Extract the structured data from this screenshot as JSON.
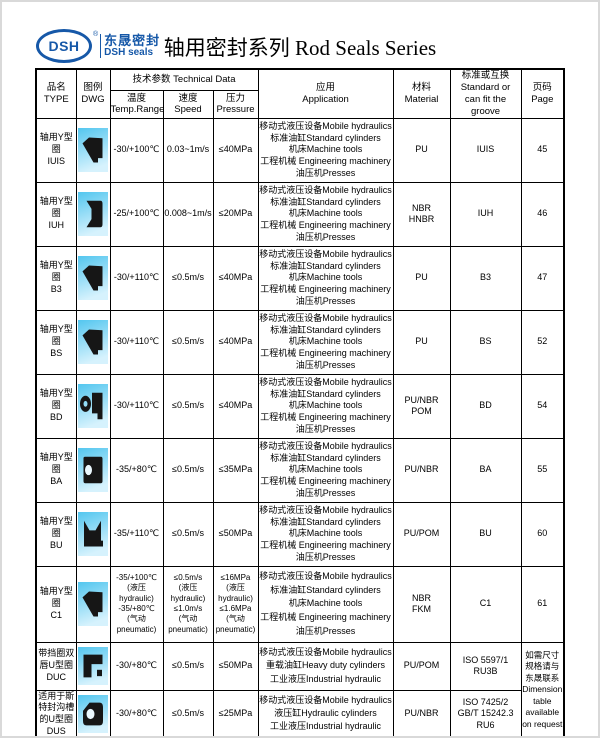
{
  "logo": {
    "mark": "DSH",
    "reg": "®",
    "cn": "东晟密封",
    "en": "DSH seals"
  },
  "title": "轴用密封系列 Rod Seals Series",
  "colors": {
    "logo_blue": "#1658a8",
    "dwg_cyan_top": "#53c6ef",
    "dwg_cyan_bottom": "#d6f2fd",
    "seal_black": "#161616"
  },
  "table": {
    "header": {
      "type": [
        "品名",
        "TYPE"
      ],
      "dwg": [
        "图例",
        "DWG"
      ],
      "tech": "技术参数 Technical Data",
      "temp": [
        "温度",
        "Temp.Range"
      ],
      "speed": [
        "速度",
        "Speed"
      ],
      "pressure": [
        "压力",
        "Pressure"
      ],
      "application": [
        "应用",
        "Application"
      ],
      "material": [
        "材料",
        "Material"
      ],
      "standard": [
        "标准或互换",
        "Standard or",
        "can fit the groove"
      ],
      "page": [
        "页码",
        "Page"
      ]
    },
    "rows": [
      {
        "type": "轴用Y型圈",
        "code": "IUIS",
        "shape": "y-cup",
        "temp": [
          "-30/+100℃"
        ],
        "speed": [
          "0.03~1m/s"
        ],
        "pressure": [
          "≤40MPa"
        ],
        "application": [
          "移动式液压设备Mobile hydraulics",
          "标准油缸Standard cylinders",
          "机床Machine tools",
          "工程机械 Engineering machinery",
          "油压机Presses"
        ],
        "material": [
          "PU"
        ],
        "standard": [
          "IUIS"
        ],
        "page": "45"
      },
      {
        "type": "轴用Y型圈",
        "code": "IUH",
        "shape": "u-lips-left",
        "temp": [
          "-25/+100℃"
        ],
        "speed": [
          "0.008~1m/s"
        ],
        "pressure": [
          "≤20MPa"
        ],
        "application": [
          "移动式液压设备Mobile hydraulics",
          "标准油缸Standard cylinders",
          "机床Machine tools",
          "工程机械 Engineering machinery",
          "油压机Presses"
        ],
        "material": [
          "NBR",
          "HNBR"
        ],
        "standard": [
          "IUH"
        ],
        "page": "46"
      },
      {
        "type": "轴用Y型圈",
        "code": "B3",
        "shape": "y-cup",
        "temp": [
          "-30/+110℃"
        ],
        "speed": [
          "≤0.5m/s"
        ],
        "pressure": [
          "≤40MPa"
        ],
        "application": [
          "移动式液压设备Mobile hydraulics",
          "标准油缸Standard cylinders",
          "机床Machine tools",
          "工程机械 Engineering machinery",
          "油压机Presses"
        ],
        "material": [
          "PU"
        ],
        "standard": [
          "B3"
        ],
        "page": "47"
      },
      {
        "type": "轴用Y型圈",
        "code": "BS",
        "shape": "y-cup",
        "temp": [
          "-30/+110℃"
        ],
        "speed": [
          "≤0.5m/s"
        ],
        "pressure": [
          "≤40MPa"
        ],
        "application": [
          "移动式液压设备Mobile hydraulics",
          "标准油缸Standard cylinders",
          "机床Machine tools",
          "工程机械 Engineering machinery",
          "油压机Presses"
        ],
        "material": [
          "PU"
        ],
        "standard": [
          "BS"
        ],
        "page": "52"
      },
      {
        "type": "轴用Y型圈",
        "code": "BD",
        "shape": "ring-block",
        "temp": [
          "-30/+110℃"
        ],
        "speed": [
          "≤0.5m/s"
        ],
        "pressure": [
          "≤40MPa"
        ],
        "application": [
          "移动式液压设备Mobile hydraulics",
          "标准油缸Standard cylinders",
          "机床Machine tools",
          "工程机械 Engineering machinery",
          "油压机Presses"
        ],
        "material": [
          "PU/NBR",
          "POM"
        ],
        "standard": [
          "BD"
        ],
        "page": "54"
      },
      {
        "type": "轴用Y型圈",
        "code": "BA",
        "shape": "block-hole",
        "temp": [
          "-35/+80℃"
        ],
        "speed": [
          "≤0.5m/s"
        ],
        "pressure": [
          "≤35MPa"
        ],
        "application": [
          "移动式液压设备Mobile hydraulics",
          "标准油缸Standard cylinders",
          "机床Machine tools",
          "工程机械 Engineering machinery",
          "油压机Presses"
        ],
        "material": [
          "PU/NBR"
        ],
        "standard": [
          "BA"
        ],
        "page": "55"
      },
      {
        "type": "轴用Y型圈",
        "code": "BU",
        "shape": "u-lips-top",
        "temp": [
          "-35/+110℃"
        ],
        "speed": [
          "≤0.5m/s"
        ],
        "pressure": [
          "≤50MPa"
        ],
        "application": [
          "移动式液压设备Mobile hydraulics",
          "标准油缸Standard cylinders",
          "机床Machine tools",
          "工程机械 Engineering machinery",
          "油压机Presses"
        ],
        "material": [
          "PU/POM"
        ],
        "standard": [
          "BU"
        ],
        "page": "60"
      },
      {
        "type": "轴用Y型圈",
        "code": "C1",
        "shape": "y-cup",
        "small": true,
        "temp": [
          "-35/+100℃",
          "(液压",
          "hydraulic)",
          "-35/+80℃",
          "(气动",
          "pneumatic)"
        ],
        "speed": [
          "≤0.5m/s",
          "(液压",
          "hydraulic)",
          "≤1.0m/s",
          "(气动",
          "pneumatic)"
        ],
        "pressure": [
          "≤16MPa",
          "(液压",
          "hydraulic)",
          "≤1.6MPa",
          "(气动",
          "pneumatic)"
        ],
        "application": [
          "移动式液压设备Mobile hydraulics",
          "标准油缸Standard cylinders",
          "机床Machine tools",
          "工程机械 Engineering machinery",
          "油压机Presses"
        ],
        "material": [
          "NBR",
          "FKM"
        ],
        "standard": [
          "C1"
        ],
        "page": "61"
      },
      {
        "type": "带挡圈双唇U型圈",
        "code": "DUC",
        "shape": "corner-flag",
        "temp": [
          "-30/+80℃"
        ],
        "speed": [
          "≤0.5m/s"
        ],
        "pressure": [
          "≤50MPa"
        ],
        "application": [
          "移动式液压设备Mobile hydraulics",
          "重载油缸Heavy duty cylinders",
          "工业液压Industrial hydraulic"
        ],
        "material": [
          "PU/POM"
        ],
        "standard": [
          "ISO 5597/1",
          "RU3B"
        ],
        "page": null
      },
      {
        "type": "适用于斯特封沟槽的U型圈",
        "code": "DUS",
        "shape": "round-hole",
        "temp": [
          "-30/+80℃"
        ],
        "speed": [
          "≤0.5m/s"
        ],
        "pressure": [
          "≤25MPa"
        ],
        "application": [
          "移动式液压设备Mobile hydraulics",
          "液压缸Hydraulic cylinders",
          "工业液压Industrial hydraulic"
        ],
        "material": [
          "PU/NBR"
        ],
        "standard": [
          "ISO 7425/2",
          "GB/T 15242.3",
          "RU6"
        ],
        "page": null
      }
    ],
    "dimension_note": [
      "如需尺寸规格请与东晟联系",
      "Dimension table available on request"
    ]
  }
}
